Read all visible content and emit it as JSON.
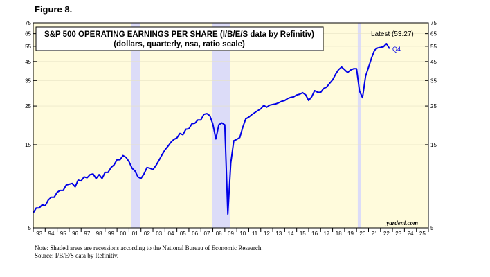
{
  "figure": {
    "label": "Figure 8.",
    "notes": [
      "Note: Shaded areas are recessions according to the National Bureau of Economic Research.",
      "Source: I/B/E/S data by Refinitiv."
    ]
  },
  "colors": {
    "plot_background": "#fffbdc",
    "recession": "#dcdcf8",
    "line": "#0000e6",
    "latest_text": "#0000e6"
  },
  "chart_data": {
    "type": "line",
    "title": "S&P 500 OPERATING EARNINGS PER SHARE (I/B/E/S data by Refinitiv)",
    "subtitle": "(dollars, quarterly, nsa, ratio scale)",
    "y_scale": "log",
    "ylim": [
      5,
      75
    ],
    "y_ticks": [
      5,
      15,
      25,
      35,
      45,
      55,
      65,
      75
    ],
    "x_range": [
      1993,
      2026
    ],
    "x_tick_labels": [
      "93",
      "94",
      "95",
      "96",
      "97",
      "98",
      "99",
      "00",
      "01",
      "02",
      "03",
      "04",
      "05",
      "06",
      "07",
      "08",
      "09",
      "10",
      "11",
      "12",
      "13",
      "14",
      "15",
      "16",
      "17",
      "18",
      "19",
      "20",
      "21",
      "22",
      "23",
      "24",
      "25"
    ],
    "recessions": [
      [
        2001.2,
        2001.9
      ],
      [
        2007.95,
        2009.45
      ],
      [
        2020.1,
        2020.35
      ]
    ],
    "latest_label": "Latest (53.27)",
    "latest_quarter": "Q4",
    "watermark": "yardeni.com",
    "series": [
      {
        "x": [
          1993.0,
          1993.25,
          1993.5,
          1993.75,
          1994.0,
          1994.25,
          1994.5,
          1994.75,
          1995.0,
          1995.25,
          1995.5,
          1995.75,
          1996.0,
          1996.25,
          1996.5,
          1996.75,
          1997.0,
          1997.25,
          1997.5,
          1997.75,
          1998.0,
          1998.25,
          1998.5,
          1998.75,
          1999.0,
          1999.25,
          1999.5,
          1999.75,
          2000.0,
          2000.25,
          2000.5,
          2000.75,
          2001.0,
          2001.25,
          2001.5,
          2001.75,
          2002.0,
          2002.25,
          2002.5,
          2002.75,
          2003.0,
          2003.25,
          2003.5,
          2003.75,
          2004.0,
          2004.25,
          2004.5,
          2004.75,
          2005.0,
          2005.25,
          2005.5,
          2005.75,
          2006.0,
          2006.25,
          2006.5,
          2006.75,
          2007.0,
          2007.25,
          2007.5,
          2007.75,
          2008.0,
          2008.25,
          2008.5,
          2008.75,
          2009.0,
          2009.25,
          2009.5,
          2009.75,
          2010.0,
          2010.25,
          2010.5,
          2010.75,
          2011.0,
          2011.25,
          2011.5,
          2011.75,
          2012.0,
          2012.25,
          2012.5,
          2012.75,
          2013.0,
          2013.25,
          2013.5,
          2013.75,
          2014.0,
          2014.25,
          2014.5,
          2014.75,
          2015.0,
          2015.25,
          2015.5,
          2015.75,
          2016.0,
          2016.25,
          2016.5,
          2016.75,
          2017.0,
          2017.25,
          2017.5,
          2017.75,
          2018.0,
          2018.25,
          2018.5,
          2018.75,
          2019.0,
          2019.25,
          2019.5,
          2019.75,
          2020.0,
          2020.25,
          2020.5,
          2020.75,
          2021.0,
          2021.25,
          2021.5,
          2021.75,
          2022.0,
          2022.25,
          2022.5,
          2022.75
        ],
        "values": [
          6.1,
          6.5,
          6.5,
          6.8,
          6.7,
          7.2,
          7.5,
          7.5,
          8.0,
          8.2,
          8.2,
          8.8,
          8.9,
          9.0,
          8.6,
          9.4,
          9.3,
          9.8,
          9.7,
          10.1,
          10.2,
          9.6,
          10.1,
          9.6,
          10.4,
          10.4,
          11.1,
          11.5,
          12.3,
          12.3,
          13.0,
          12.7,
          12.0,
          11.0,
          10.6,
          9.8,
          9.6,
          10.2,
          11.1,
          11.0,
          10.8,
          11.4,
          12.2,
          13.1,
          14.0,
          14.7,
          15.5,
          16.1,
          16.4,
          17.4,
          17.1,
          18.4,
          18.5,
          19.8,
          19.9,
          20.8,
          20.8,
          22.4,
          22.6,
          22.0,
          19.7,
          16.2,
          19.5,
          20.0,
          19.5,
          6.0,
          11.8,
          15.8,
          16.1,
          16.5,
          18.9,
          21.1,
          21.6,
          22.3,
          22.9,
          23.5,
          24.1,
          25.2,
          24.6,
          25.3,
          25.5,
          25.7,
          26.1,
          26.6,
          26.9,
          27.6,
          28.0,
          28.2,
          28.9,
          29.2,
          29.8,
          29.0,
          26.9,
          28.2,
          30.6,
          30.0,
          29.9,
          31.5,
          32.1,
          33.7,
          35.3,
          38.0,
          40.4,
          41.8,
          40.4,
          38.9,
          40.2,
          40.9,
          40.9,
          30.4,
          27.9,
          37.0,
          41.7,
          47.1,
          52.2,
          53.8,
          54.2,
          54.7,
          57.0,
          53.27
        ]
      }
    ]
  }
}
